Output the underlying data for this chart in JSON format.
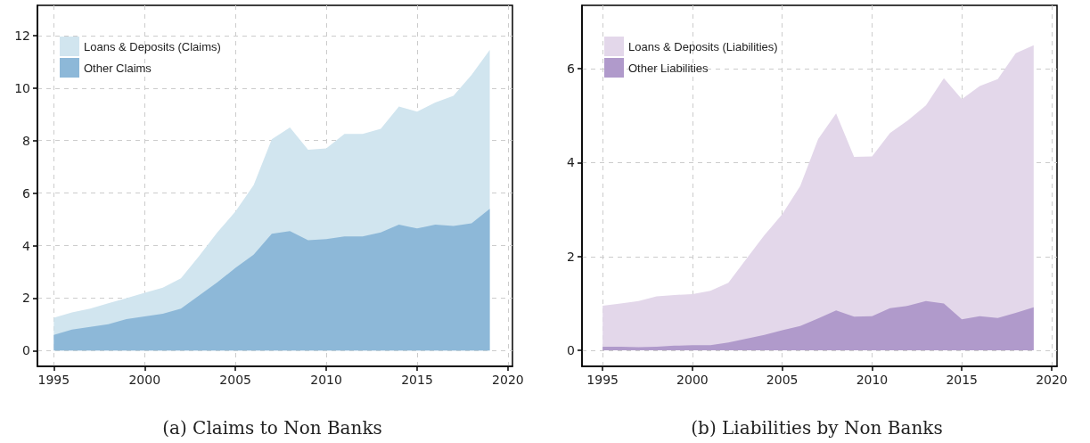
{
  "chart_data": [
    {
      "type": "area",
      "title": "(a) Claims to Non Banks",
      "stacked": true,
      "x": [
        1995,
        1996,
        1997,
        1998,
        1999,
        2000,
        2001,
        2002,
        2003,
        2004,
        2005,
        2006,
        2007,
        2008,
        2009,
        2010,
        2011,
        2012,
        2013,
        2014,
        2015,
        2016,
        2017,
        2018,
        2019
      ],
      "series": [
        {
          "name": "Other Claims",
          "color": "#8db8d8",
          "values": [
            0.6,
            0.8,
            0.9,
            1.0,
            1.2,
            1.3,
            1.4,
            1.6,
            2.1,
            2.6,
            3.15,
            3.65,
            4.45,
            4.55,
            4.2,
            4.25,
            4.35,
            4.35,
            4.5,
            4.8,
            4.65,
            4.8,
            4.75,
            4.85,
            5.4
          ]
        },
        {
          "name": "Loans & Deposits (Claims)",
          "color": "#d1e5ef",
          "values": [
            0.65,
            0.65,
            0.7,
            0.8,
            0.8,
            0.9,
            1.0,
            1.15,
            1.5,
            1.9,
            2.15,
            2.65,
            3.6,
            3.95,
            3.45,
            3.45,
            3.9,
            3.9,
            3.95,
            4.5,
            4.45,
            4.65,
            4.95,
            5.65,
            6.05
          ]
        }
      ],
      "xlim": [
        1994.1,
        2020.25
      ],
      "xticks": [
        1995,
        2000,
        2005,
        2010,
        2015,
        2020
      ],
      "ylim": [
        -0.6,
        13.15
      ],
      "yticks": [
        0,
        2,
        4,
        6,
        8,
        10,
        12
      ],
      "grid": true,
      "legend": "top left"
    },
    {
      "type": "area",
      "title": "(b) Liabilities by Non Banks",
      "stacked": true,
      "x": [
        1995,
        1996,
        1997,
        1998,
        1999,
        2000,
        2001,
        2002,
        2003,
        2004,
        2005,
        2006,
        2007,
        2008,
        2009,
        2010,
        2011,
        2012,
        2013,
        2014,
        2015,
        2016,
        2017,
        2018,
        2019
      ],
      "series": [
        {
          "name": "Other Liabilities",
          "color": "#b09acb",
          "values": [
            0.08,
            0.08,
            0.07,
            0.08,
            0.1,
            0.11,
            0.11,
            0.17,
            0.25,
            0.33,
            0.43,
            0.52,
            0.68,
            0.85,
            0.72,
            0.73,
            0.9,
            0.95,
            1.05,
            1.0,
            0.66,
            0.73,
            0.69,
            0.8,
            0.92
          ]
        },
        {
          "name": "Loans & Deposits (Liabilities)",
          "color": "#e3d7ea",
          "values": [
            0.87,
            0.92,
            0.98,
            1.07,
            1.08,
            1.09,
            1.16,
            1.27,
            1.7,
            2.12,
            2.47,
            2.98,
            3.82,
            4.2,
            3.4,
            3.4,
            3.73,
            3.95,
            4.17,
            4.8,
            4.69,
            4.9,
            5.09,
            5.53,
            5.58
          ]
        }
      ],
      "xlim": [
        1993.85,
        2020.3
      ],
      "xticks": [
        1995,
        2000,
        2005,
        2010,
        2015,
        2020
      ],
      "ylim": [
        -0.34,
        7.35
      ],
      "yticks": [
        0,
        2,
        4,
        6
      ],
      "grid": true,
      "legend": "top left"
    }
  ]
}
